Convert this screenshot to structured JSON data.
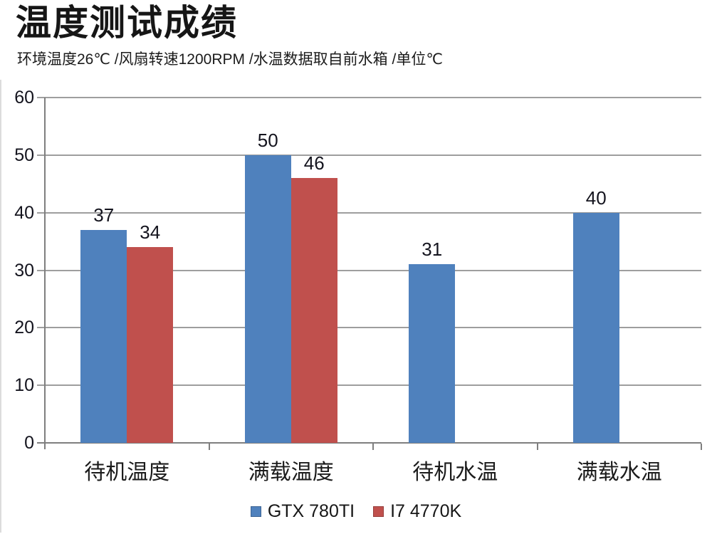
{
  "title": "温度测试成绩",
  "subtitle": "环境温度26℃ /风扇转速1200RPM /水温数据取自前水箱 /单位℃",
  "colors": {
    "series1": "#4F81BD",
    "series2": "#C0504D",
    "gridline": "#9E9E9E",
    "axis": "#7F7F7F",
    "label_text": "#14141E"
  },
  "chart_data": {
    "type": "bar",
    "title": "温度测试成绩",
    "subtitle": "环境温度26℃ /风扇转速1200RPM /水温数据取自前水箱 /单位℃",
    "categories": [
      "待机温度",
      "满载温度",
      "待机水温",
      "满载水温"
    ],
    "series": [
      {
        "name": "GTX 780TI",
        "color": "#4F81BD",
        "values": [
          37,
          50,
          31,
          40
        ]
      },
      {
        "name": "I7 4770K",
        "color": "#C0504D",
        "values": [
          34,
          46,
          null,
          null
        ]
      }
    ],
    "ylim": [
      0,
      60
    ],
    "yticks": [
      60,
      50,
      40,
      30,
      20,
      10,
      0
    ],
    "xlabel": "",
    "ylabel": "",
    "unit": "℃",
    "grid": true,
    "data_labels": true,
    "legend_position": "bottom"
  }
}
